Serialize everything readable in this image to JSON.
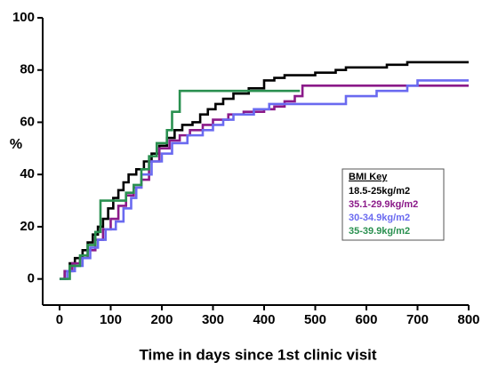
{
  "chart_data": {
    "type": "line",
    "step": true,
    "y_label": "%",
    "x_label": "Time in days since 1st clinic visit",
    "legend_title": "BMI Key",
    "xlim": [
      -33,
      800
    ],
    "ylim": [
      -10,
      100
    ],
    "xticks": [
      0,
      100,
      200,
      300,
      400,
      500,
      600,
      700,
      800
    ],
    "yticks": [
      0,
      20,
      40,
      60,
      80,
      100
    ],
    "series": [
      {
        "name": "18.5-25kg/m2",
        "color": "#000000",
        "x": [
          0,
          10,
          20,
          30,
          45,
          55,
          65,
          75,
          85,
          95,
          105,
          115,
          125,
          135,
          150,
          165,
          180,
          195,
          210,
          225,
          240,
          260,
          275,
          290,
          305,
          320,
          340,
          370,
          400,
          420,
          440,
          500,
          540,
          560,
          640,
          680,
          800
        ],
        "values": [
          0,
          3,
          6,
          8,
          11,
          14,
          17,
          20,
          23,
          27,
          31,
          34,
          37,
          40,
          42,
          45,
          48,
          51,
          54,
          57,
          59,
          60,
          63,
          65,
          67,
          69,
          71,
          73,
          76,
          77,
          78,
          79,
          80,
          81,
          82,
          83,
          83
        ]
      },
      {
        "name": "35.1-29.9kg/m2",
        "color": "#8b1a89",
        "x": [
          0,
          10,
          25,
          40,
          55,
          70,
          85,
          100,
          115,
          130,
          145,
          160,
          175,
          195,
          215,
          235,
          255,
          280,
          300,
          330,
          360,
          400,
          420,
          440,
          460,
          475,
          800
        ],
        "values": [
          0,
          3,
          6,
          8,
          11,
          15,
          19,
          23,
          28,
          32,
          35,
          38,
          45,
          50,
          53,
          55,
          57,
          59,
          61,
          63,
          64,
          65,
          66,
          68,
          70,
          74,
          74
        ]
      },
      {
        "name": "30-34.9kg/m2",
        "color": "#6a6af0",
        "x": [
          0,
          15,
          30,
          45,
          60,
          75,
          90,
          110,
          125,
          140,
          150,
          160,
          180,
          200,
          220,
          250,
          280,
          300,
          320,
          340,
          380,
          410,
          540,
          560,
          620,
          680,
          700,
          800
        ],
        "values": [
          0,
          3,
          5,
          8,
          12,
          15,
          19,
          22,
          27,
          31,
          35,
          40,
          45,
          48,
          52,
          55,
          57,
          59,
          61,
          63,
          65,
          67,
          67,
          70,
          72,
          74,
          76,
          76
        ]
      },
      {
        "name": "35-39.9kg/m2",
        "color": "#2a9050",
        "x": [
          0,
          20,
          40,
          55,
          70,
          80,
          110,
          130,
          145,
          160,
          175,
          190,
          210,
          220,
          235,
          470
        ],
        "values": [
          0,
          5,
          9,
          13,
          18,
          30,
          30,
          33,
          36,
          42,
          47,
          52,
          57,
          64,
          72,
          72
        ]
      }
    ]
  }
}
